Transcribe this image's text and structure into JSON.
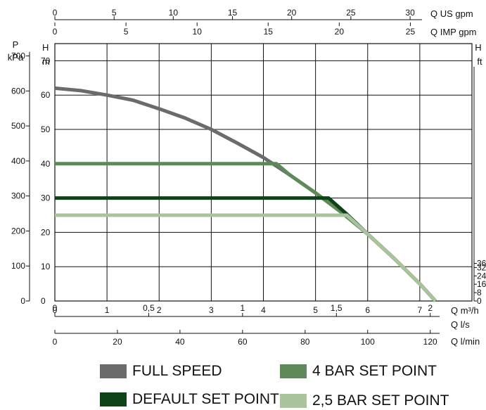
{
  "chart_data": {
    "type": "line",
    "series": [
      {
        "name": "FULL SPEED",
        "color": "#6b6b6b",
        "x": [
          0,
          0.5,
          1,
          1.5,
          2,
          2.5,
          3,
          3.5,
          4,
          4.5,
          5,
          5.5,
          6,
          6.5,
          7,
          7.3
        ],
        "y": [
          62,
          61.3,
          60,
          58.5,
          56,
          53.3,
          50,
          46,
          41.8,
          36.8,
          31.5,
          25.8,
          19.5,
          12.5,
          5,
          0
        ]
      },
      {
        "name": "4 BAR SET POINT",
        "color": "#5d8a58",
        "x": [
          0,
          4.25,
          4.5,
          5,
          5.5,
          6,
          6.5,
          7,
          7.3
        ],
        "y": [
          40,
          40,
          36.8,
          31.5,
          25.8,
          19.5,
          12.5,
          5,
          0
        ]
      },
      {
        "name": "DEFAULT SET POINT",
        "color": "#0c4417",
        "x": [
          0,
          5.25,
          5.6,
          6,
          6.5,
          7,
          7.3
        ],
        "y": [
          30,
          30,
          25.3,
          19.5,
          12.5,
          5,
          0
        ]
      },
      {
        "name": "2,5 BAR SET POINT",
        "color": "#a9c49c",
        "x": [
          0,
          5.6,
          6,
          6.5,
          7,
          7.3
        ],
        "y": [
          25,
          25,
          19.5,
          12.5,
          5,
          0
        ]
      }
    ],
    "xlim": [
      0,
      8
    ],
    "ylim": [
      0,
      75
    ],
    "grid": true,
    "axes": {
      "bottom": {
        "unit": "Q m³/h",
        "ticks": [
          {
            "v": 0,
            "t": "0"
          },
          {
            "v": 1,
            "t": "1"
          },
          {
            "v": 2,
            "t": "2"
          },
          {
            "v": 3,
            "t": "3"
          },
          {
            "v": 4,
            "t": "4"
          },
          {
            "v": 5,
            "t": "5"
          },
          {
            "v": 6,
            "t": "6"
          },
          {
            "v": 7,
            "t": "7"
          }
        ]
      },
      "bottom2": {
        "unit": "Q l/s",
        "ticks": [
          {
            "v": 0,
            "t": "0"
          },
          {
            "v": 1.8,
            "t": "0,5"
          },
          {
            "v": 3.6,
            "t": "1"
          },
          {
            "v": 5.4,
            "t": "1,5"
          },
          {
            "v": 7.2,
            "t": "2"
          }
        ]
      },
      "bottom3": {
        "unit": "Q l/min",
        "ticks": [
          {
            "v": 0,
            "t": "0"
          },
          {
            "v": 1.2,
            "t": "20"
          },
          {
            "v": 2.4,
            "t": "40"
          },
          {
            "v": 3.6,
            "t": "60"
          },
          {
            "v": 4.8,
            "t": "80"
          },
          {
            "v": 6,
            "t": "100"
          },
          {
            "v": 7.2,
            "t": "120"
          }
        ]
      },
      "top": {
        "unit": "Q US gpm",
        "ticks": [
          {
            "v": 0,
            "t": "0"
          },
          {
            "v": 1.136,
            "t": "5"
          },
          {
            "v": 2.271,
            "t": "10"
          },
          {
            "v": 3.407,
            "t": "15"
          },
          {
            "v": 4.542,
            "t": "20"
          },
          {
            "v": 5.678,
            "t": "25"
          },
          {
            "v": 6.814,
            "t": "30"
          }
        ]
      },
      "top2": {
        "unit": "Q IMP gpm",
        "ticks": [
          {
            "v": 0,
            "t": "0"
          },
          {
            "v": 1.364,
            "t": "5"
          },
          {
            "v": 2.728,
            "t": "10"
          },
          {
            "v": 4.091,
            "t": "15"
          },
          {
            "v": 5.455,
            "t": "20"
          },
          {
            "v": 6.819,
            "t": "25"
          }
        ]
      },
      "left_m": {
        "unit": "H",
        "unit2": "m",
        "ticks": [
          {
            "v": 0,
            "t": "0"
          },
          {
            "v": 10,
            "t": "10"
          },
          {
            "v": 20,
            "t": "20"
          },
          {
            "v": 30,
            "t": "30"
          },
          {
            "v": 40,
            "t": "40"
          },
          {
            "v": 50,
            "t": "50"
          },
          {
            "v": 60,
            "t": "60"
          },
          {
            "v": 70,
            "t": "70"
          }
        ]
      },
      "left_kpa": {
        "unit": "P",
        "unit2": "kPa",
        "ticks": [
          {
            "v": 0,
            "t": "0"
          },
          {
            "v": 10.2,
            "t": "100"
          },
          {
            "v": 20.4,
            "t": "200"
          },
          {
            "v": 30.6,
            "t": "300"
          },
          {
            "v": 40.8,
            "t": "400"
          },
          {
            "v": 51,
            "t": "500"
          },
          {
            "v": 61.2,
            "t": "600"
          },
          {
            "v": 71.4,
            "t": "700"
          }
        ]
      },
      "right_ft": {
        "unit": "H",
        "unit2": "ft",
        "ticks": [
          {
            "v": 0,
            "t": "0"
          },
          {
            "v": 2.44,
            "t": "8"
          },
          {
            "v": 4.88,
            "t": "16"
          },
          {
            "v": 7.32,
            "t": "24"
          },
          {
            "v": 9.75,
            "t": "32"
          },
          {
            "v": 10.97,
            "t": "36"
          }
        ]
      }
    },
    "legend": {
      "placement": "bottom"
    }
  }
}
